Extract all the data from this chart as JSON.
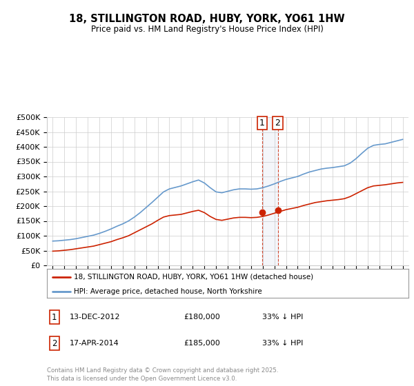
{
  "title": "18, STILLINGTON ROAD, HUBY, YORK, YO61 1HW",
  "subtitle": "Price paid vs. HM Land Registry's House Price Index (HPI)",
  "ylabel_ticks": [
    "£0",
    "£50K",
    "£100K",
    "£150K",
    "£200K",
    "£250K",
    "£300K",
    "£350K",
    "£400K",
    "£450K",
    "£500K"
  ],
  "ytick_values": [
    0,
    50000,
    100000,
    150000,
    200000,
    250000,
    300000,
    350000,
    400000,
    450000,
    500000
  ],
  "ylim": [
    0,
    500000
  ],
  "background_color": "#ffffff",
  "grid_color": "#cccccc",
  "hpi_color": "#6699cc",
  "price_color": "#cc2200",
  "legend_label_price": "18, STILLINGTON ROAD, HUBY, YORK, YO61 1HW (detached house)",
  "legend_label_hpi": "HPI: Average price, detached house, North Yorkshire",
  "transaction1_label": "1",
  "transaction1_date": "13-DEC-2012",
  "transaction1_price": "£180,000",
  "transaction1_hpi": "33% ↓ HPI",
  "transaction2_label": "2",
  "transaction2_date": "17-APR-2014",
  "transaction2_price": "£185,000",
  "transaction2_hpi": "33% ↓ HPI",
  "footer": "Contains HM Land Registry data © Crown copyright and database right 2025.\nThis data is licensed under the Open Government Licence v3.0.",
  "marker1_x": 2012.96,
  "marker1_y": 180000,
  "marker2_x": 2014.29,
  "marker2_y": 185000,
  "vline1_x": 2012.96,
  "vline2_x": 2014.29,
  "xlim_min": 1994.5,
  "xlim_max": 2025.5,
  "hpi_years": [
    1995,
    1995.5,
    1996,
    1996.5,
    1997,
    1997.5,
    1998,
    1998.5,
    1999,
    1999.5,
    2000,
    2000.5,
    2001,
    2001.5,
    2002,
    2002.5,
    2003,
    2003.5,
    2004,
    2004.5,
    2005,
    2005.5,
    2006,
    2006.5,
    2007,
    2007.5,
    2008,
    2008.5,
    2009,
    2009.5,
    2010,
    2010.5,
    2011,
    2011.5,
    2012,
    2012.5,
    2013,
    2013.5,
    2014,
    2014.5,
    2015,
    2015.5,
    2016,
    2016.5,
    2017,
    2017.5,
    2018,
    2018.5,
    2019,
    2019.5,
    2020,
    2020.5,
    2021,
    2021.5,
    2022,
    2022.5,
    2023,
    2023.5,
    2024,
    2024.5,
    2025
  ],
  "hpi_values": [
    82000,
    83000,
    85000,
    87000,
    90000,
    94000,
    98000,
    102000,
    108000,
    115000,
    123000,
    132000,
    140000,
    150000,
    163000,
    178000,
    195000,
    212000,
    230000,
    248000,
    258000,
    263000,
    268000,
    275000,
    282000,
    288000,
    278000,
    262000,
    248000,
    245000,
    250000,
    255000,
    258000,
    258000,
    257000,
    258000,
    262000,
    268000,
    275000,
    283000,
    290000,
    295000,
    300000,
    308000,
    315000,
    320000,
    325000,
    328000,
    330000,
    333000,
    336000,
    345000,
    360000,
    378000,
    395000,
    405000,
    408000,
    410000,
    415000,
    420000,
    425000
  ],
  "price_years": [
    1995,
    1995.5,
    1996,
    1996.5,
    1997,
    1997.5,
    1998,
    1998.5,
    1999,
    1999.5,
    2000,
    2000.5,
    2001,
    2001.5,
    2002,
    2002.5,
    2003,
    2003.5,
    2004,
    2004.5,
    2005,
    2005.5,
    2006,
    2006.5,
    2007,
    2007.5,
    2008,
    2008.5,
    2009,
    2009.5,
    2010,
    2010.5,
    2011,
    2011.5,
    2012,
    2012.5,
    2013,
    2013.5,
    2014,
    2014.5,
    2015,
    2015.5,
    2016,
    2016.5,
    2017,
    2017.5,
    2018,
    2018.5,
    2019,
    2019.5,
    2020,
    2020.5,
    2021,
    2021.5,
    2022,
    2022.5,
    2023,
    2023.5,
    2024,
    2024.5,
    2025
  ],
  "price_values": [
    48000,
    49000,
    51000,
    53000,
    56000,
    59000,
    62000,
    65000,
    70000,
    75000,
    80000,
    87000,
    93000,
    100000,
    110000,
    120000,
    130000,
    140000,
    152000,
    163000,
    168000,
    170000,
    172000,
    177000,
    182000,
    186000,
    178000,
    165000,
    155000,
    152000,
    156000,
    160000,
    162000,
    162000,
    161000,
    162000,
    165000,
    170000,
    176000,
    182000,
    188000,
    192000,
    196000,
    202000,
    207000,
    212000,
    215000,
    218000,
    220000,
    222000,
    225000,
    232000,
    242000,
    252000,
    262000,
    268000,
    270000,
    272000,
    275000,
    278000,
    280000
  ]
}
